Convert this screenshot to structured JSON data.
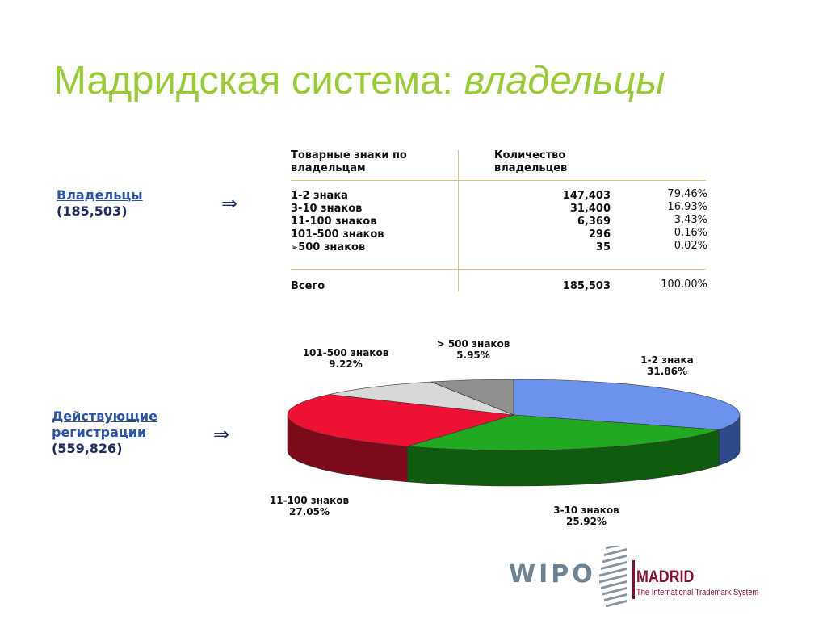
{
  "title": {
    "main": "Мадридская система:",
    "italic": "владельцы"
  },
  "owners_label": {
    "line1": "Владельцы",
    "line2": "(185,503)"
  },
  "registrations_label": {
    "line1": "Действующие",
    "line2": "регистрации",
    "line3": "(559,826)"
  },
  "arrow_glyph": "⇒",
  "table": {
    "header_col1_line1": "Товарные знаки по",
    "header_col1_line2": "владельцам",
    "header_col2_line1": "Количество",
    "header_col2_line2": "владельцев",
    "rows": [
      {
        "label": "1-2 знака",
        "count": "147,403",
        "percent": "79.46%"
      },
      {
        "label": "3-10 знаков",
        "count": "31,400",
        "percent": "16.93%"
      },
      {
        "label": "11-100 знаков",
        "count": "6,369",
        "percent": "3.43%"
      },
      {
        "label": "101-500 знаков",
        "count": "296",
        "percent": "0.16%"
      },
      {
        "label": "500 знаков",
        "bullet": "➢",
        "count": "35",
        "percent": "0.02%"
      }
    ],
    "total": {
      "label": "Всего",
      "count": "185,503",
      "percent": "100.00%"
    }
  },
  "chart_data": {
    "type": "pie",
    "title": "",
    "slices": [
      {
        "label": "1-2 знака",
        "percent_label": "31.86%",
        "value": 31.86,
        "color": "#6b93ee",
        "side_color": "#2d4a8a"
      },
      {
        "label": "3-10 знаков",
        "percent_label": "25.92%",
        "value": 25.92,
        "color": "#22a922",
        "side_color": "#0f5c0f"
      },
      {
        "label": "11-100 знаков",
        "percent_label": "27.05%",
        "value": 27.05,
        "color": "#ee1133",
        "side_color": "#7c0a1a"
      },
      {
        "label": "101-500 знаков",
        "percent_label": "9.22%",
        "value": 9.22,
        "color": "#d8d8d8",
        "side_color": "#9a9a9a"
      },
      {
        "label": "> 500 знаков",
        "percent_label": "5.95%",
        "value": 5.95,
        "color": "#8f8f8f",
        "side_color": "#5a5a5a"
      }
    ]
  },
  "logo": {
    "wipo": "WIPO",
    "madrid": "MADRID",
    "subtitle": "The International Trademark System"
  }
}
